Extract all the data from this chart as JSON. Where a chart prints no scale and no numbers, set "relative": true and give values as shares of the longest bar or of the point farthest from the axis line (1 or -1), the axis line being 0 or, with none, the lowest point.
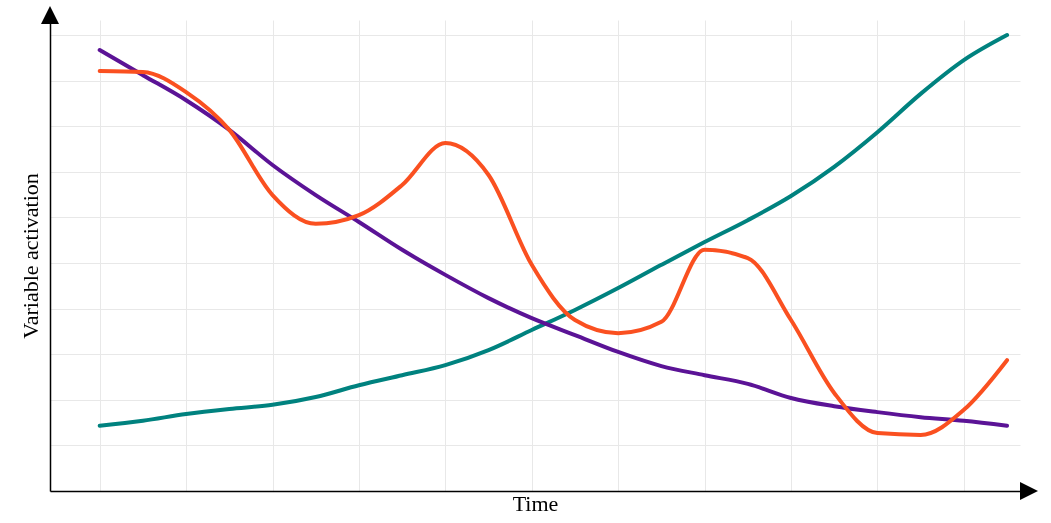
{
  "chart_data": {
    "type": "line",
    "relative": true,
    "xlabel": "Time",
    "ylabel": "Variable activation",
    "grid": true,
    "marker": "none",
    "line_style": "solid",
    "categories": [
      null,
      null,
      null,
      null,
      null,
      null,
      null,
      null,
      null,
      null,
      null,
      null,
      null,
      null,
      null,
      null,
      null,
      null,
      null,
      null,
      null,
      null
    ],
    "series": [
      {
        "color": "#00827f",
        "values": [
          0.143,
          0.154,
          0.169,
          0.18,
          0.189,
          0.206,
          0.232,
          0.254,
          0.276,
          0.309,
          0.353,
          0.397,
          0.445,
          0.496,
          0.546,
          0.594,
          0.647,
          0.711,
          0.787,
          0.871,
          0.945,
          1
        ]
      },
      {
        "color": "#5b1396",
        "values": [
          0.967,
          0.912,
          0.857,
          0.792,
          0.715,
          0.649,
          0.59,
          0.529,
          0.474,
          0.423,
          0.379,
          0.342,
          0.305,
          0.274,
          0.254,
          0.235,
          0.204,
          0.186,
          0.173,
          0.162,
          0.154,
          0.143
        ]
      },
      {
        "color": "#fa5020",
        "values": [
          0.921,
          0.919,
          0.875,
          0.792,
          0.649,
          0.586,
          0.605,
          0.671,
          0.763,
          0.693,
          0.496,
          0.375,
          0.346,
          0.371,
          0.529,
          0.511,
          0.375,
          0.215,
          0.127,
          0.123,
          0.178,
          0.287
        ]
      }
    ]
  }
}
